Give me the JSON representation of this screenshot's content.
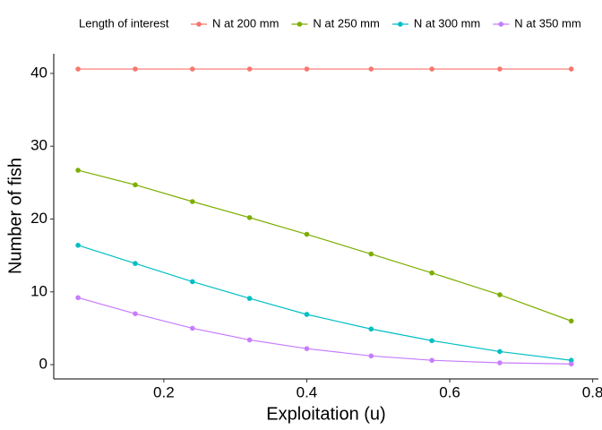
{
  "chart_data": {
    "type": "line",
    "x_label": "Exploitation (u)",
    "y_label": "Number of fish",
    "legend_title": "Length of interest",
    "legend_position": "top",
    "x": [
      0.08,
      0.16,
      0.24,
      0.32,
      0.4,
      0.49,
      0.575,
      0.67,
      0.77
    ],
    "series": [
      {
        "name": "N at 200 mm",
        "color": "#F8766D",
        "values": [
          40.6,
          40.6,
          40.6,
          40.6,
          40.6,
          40.6,
          40.6,
          40.6,
          40.6
        ]
      },
      {
        "name": "N at 250 mm",
        "color": "#7CAE00",
        "values": [
          26.7,
          24.7,
          22.4,
          20.2,
          17.9,
          15.2,
          12.6,
          9.6,
          6.0
        ]
      },
      {
        "name": "N at 300 mm",
        "color": "#00BFC4",
        "values": [
          16.4,
          13.9,
          11.4,
          9.1,
          6.9,
          4.9,
          3.3,
          1.8,
          0.6
        ]
      },
      {
        "name": "N at 350 mm",
        "color": "#C77CFF",
        "values": [
          9.2,
          7.0,
          5.0,
          3.4,
          2.2,
          1.2,
          0.6,
          0.25,
          0.1
        ]
      }
    ],
    "xlim": [
      0.046,
      0.808
    ],
    "ylim": [
      -1.96,
      42.7
    ],
    "xticks": [
      0.2,
      0.4,
      0.6,
      0.8
    ],
    "yticks": [
      0,
      10,
      20,
      30,
      40
    ],
    "grid": false
  }
}
